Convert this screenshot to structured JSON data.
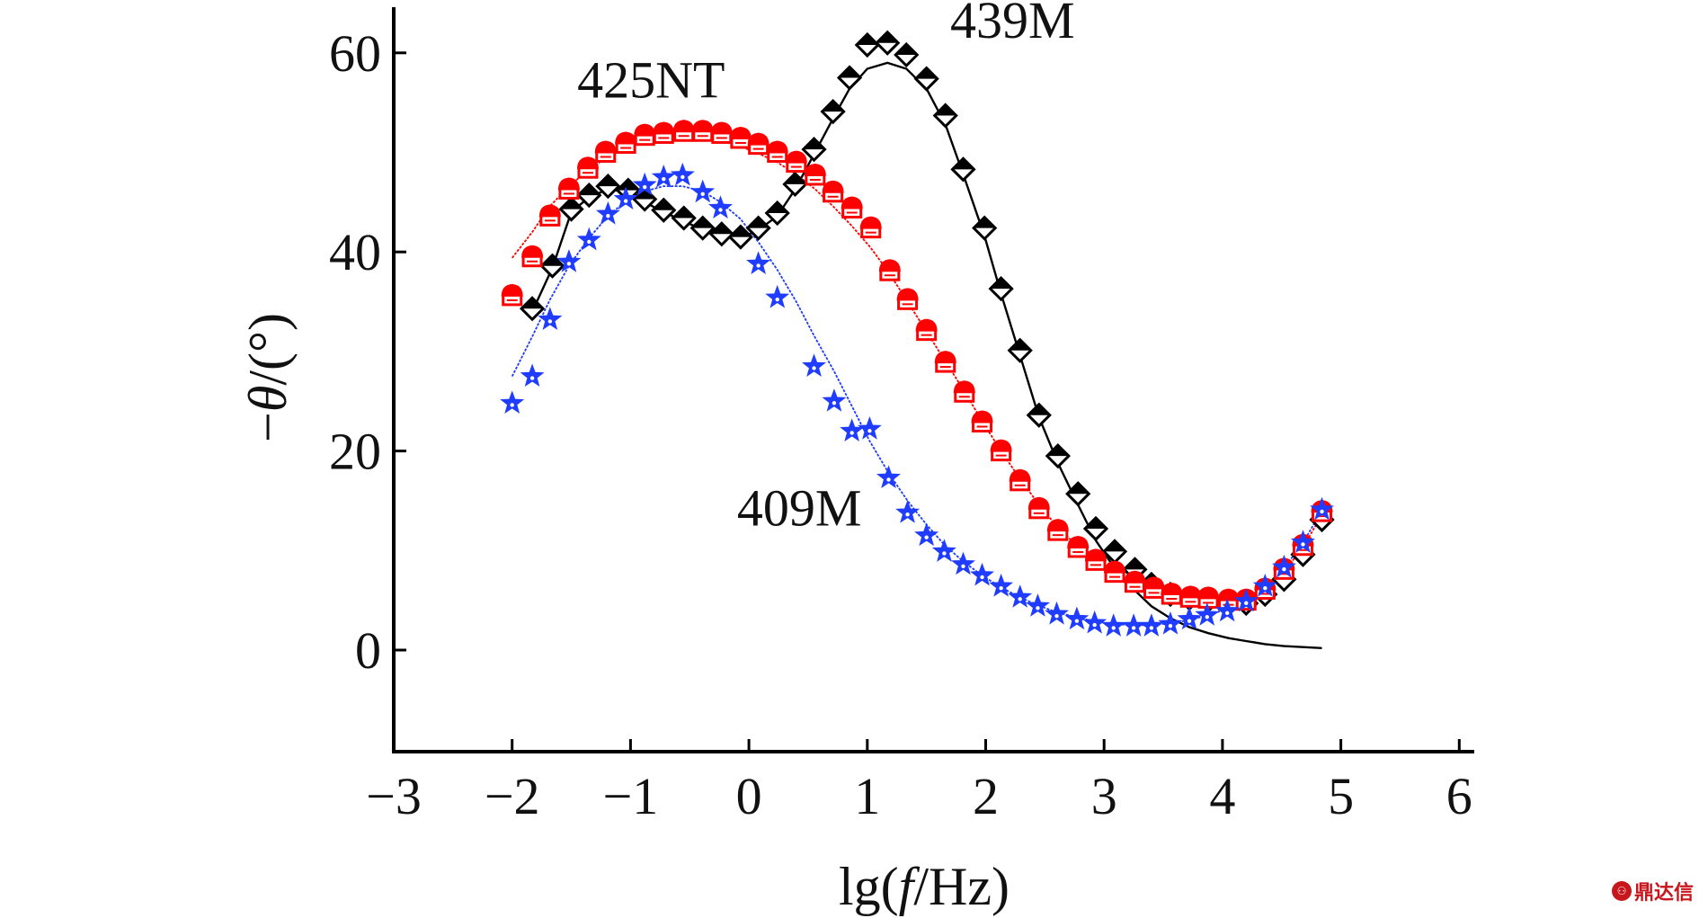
{
  "chart_data": {
    "type": "scatter",
    "title": "",
    "xlabel": "lg(f/Hz)",
    "xlabel_parts": {
      "prefix": "lg(",
      "italic": "f",
      "suffix": "/Hz)"
    },
    "ylabel": "−θ/(°)",
    "ylabel_parts": {
      "prefix": "−",
      "italic": "θ",
      "suffix": "/(°)"
    },
    "xlim": [
      -3,
      6
    ],
    "ylim": [
      -10,
      65
    ],
    "xticks": [
      -3,
      -2,
      -1,
      0,
      1,
      2,
      3,
      4,
      5,
      6
    ],
    "xtick_labels": [
      "−3",
      "−2",
      "−1",
      "0",
      "1",
      "2",
      "3",
      "4",
      "5",
      "6"
    ],
    "yticks": [
      0,
      20,
      40,
      60
    ],
    "ytick_labels": [
      "0",
      "20",
      "40",
      "60"
    ],
    "grid": false,
    "legend": "none (inline annotations)",
    "annotations": [
      {
        "text": "439M",
        "x": 1.7,
        "y": 61.5
      },
      {
        "text": "425NT",
        "x": -1.45,
        "y": 55.5
      },
      {
        "text": "409M",
        "x": -0.1,
        "y": 12.5
      }
    ],
    "series": [
      {
        "name": "439M",
        "color": "#000000",
        "marker": "diamond-half-filled",
        "x": [
          -1.83,
          -1.66,
          -1.5,
          -1.35,
          -1.19,
          -1.02,
          -0.88,
          -0.72,
          -0.55,
          -0.39,
          -0.23,
          -0.07,
          0.08,
          0.24,
          0.39,
          0.55,
          0.71,
          0.85,
          1.0,
          1.17,
          1.33,
          1.5,
          1.66,
          1.81,
          1.99,
          2.13,
          2.29,
          2.45,
          2.61,
          2.78,
          2.93,
          3.09,
          3.26,
          3.4,
          3.56,
          3.72,
          3.88,
          4.05,
          4.2,
          4.36,
          4.52,
          4.68,
          4.84
        ],
        "y": [
          34.3,
          38.6,
          44.3,
          45.7,
          46.6,
          46.2,
          45.3,
          44.2,
          43.4,
          42.4,
          41.8,
          41.5,
          42.4,
          43.9,
          46.8,
          50.3,
          54.1,
          57.5,
          60.8,
          61.0,
          59.8,
          57.4,
          53.7,
          48.3,
          42.4,
          36.3,
          30.1,
          23.6,
          19.5,
          15.7,
          12.2,
          9.9,
          8.1,
          6.6,
          5.6,
          5.2,
          5.0,
          4.9,
          4.7,
          5.6,
          7.1,
          9.6,
          13.1
        ],
        "fit": {
          "x": [
            -1.83,
            -1.66,
            -1.5,
            -1.35,
            -1.19,
            -1.02,
            -0.88,
            -0.72,
            -0.55,
            -0.39,
            -0.23,
            -0.07,
            0.08,
            0.24,
            0.39,
            0.55,
            0.71,
            0.85,
            1.0,
            1.17,
            1.33,
            1.5,
            1.66,
            1.81,
            1.99,
            2.13,
            2.29,
            2.45,
            2.61,
            2.78,
            2.93,
            3.09,
            3.26,
            3.4,
            3.56,
            3.72,
            3.88,
            4.05,
            4.2,
            4.36,
            4.52,
            4.68,
            4.84
          ],
          "y": [
            34.0,
            38.4,
            44.0,
            45.5,
            46.3,
            46.0,
            45.0,
            44.0,
            43.1,
            42.2,
            41.6,
            41.4,
            42.2,
            43.6,
            46.3,
            49.8,
            53.4,
            56.4,
            58.4,
            59.0,
            58.4,
            56.4,
            52.8,
            47.8,
            41.6,
            35.8,
            29.6,
            23.4,
            18.8,
            14.6,
            11.0,
            8.2,
            6.0,
            4.4,
            3.2,
            2.3,
            1.7,
            1.2,
            0.9,
            0.6,
            0.4,
            0.3,
            0.2
          ]
        }
      },
      {
        "name": "425NT",
        "color": "#ff0000",
        "marker": "house-half-filled",
        "x": [
          -2.0,
          -1.83,
          -1.68,
          -1.52,
          -1.36,
          -1.21,
          -1.04,
          -0.88,
          -0.72,
          -0.55,
          -0.39,
          -0.23,
          -0.07,
          0.08,
          0.24,
          0.4,
          0.56,
          0.71,
          0.87,
          1.03,
          1.19,
          1.34,
          1.5,
          1.66,
          1.82,
          1.97,
          2.13,
          2.29,
          2.45,
          2.61,
          2.78,
          2.93,
          3.09,
          3.26,
          3.42,
          3.57,
          3.73,
          3.88,
          4.05,
          4.2,
          4.36,
          4.52,
          4.68,
          4.84
        ],
        "y": [
          35.6,
          39.5,
          43.6,
          46.3,
          48.4,
          50.0,
          50.9,
          51.7,
          51.9,
          52.1,
          52.1,
          51.9,
          51.4,
          50.8,
          50.0,
          49.0,
          47.7,
          46.0,
          44.4,
          42.4,
          38.1,
          35.2,
          32.1,
          28.9,
          25.9,
          22.9,
          20.0,
          17.0,
          14.2,
          12.0,
          10.3,
          9.0,
          7.8,
          6.8,
          6.2,
          5.6,
          5.3,
          5.2,
          5.0,
          5.0,
          6.1,
          8.1,
          10.5,
          13.9
        ],
        "fit": {
          "x": [
            -2.0,
            -1.83,
            -1.68,
            -1.52,
            -1.36,
            -1.21,
            -1.04,
            -0.88,
            -0.72,
            -0.55,
            -0.39,
            -0.23,
            -0.07,
            0.08,
            0.24,
            0.4,
            0.56,
            0.71,
            0.87,
            1.03,
            1.19,
            1.34,
            1.5,
            1.66,
            1.82,
            1.97,
            2.13,
            2.29,
            2.45,
            2.61,
            2.78,
            2.93,
            3.09,
            3.26,
            3.42,
            3.57,
            3.73,
            3.88,
            4.05,
            4.2,
            4.36,
            4.52,
            4.68,
            4.84
          ],
          "y": [
            39.4,
            42.0,
            44.6,
            46.6,
            48.2,
            49.4,
            50.4,
            51.0,
            51.4,
            51.5,
            51.4,
            51.1,
            50.6,
            49.9,
            49.0,
            47.8,
            46.3,
            44.6,
            42.6,
            40.4,
            37.8,
            35.0,
            32.0,
            29.0,
            26.0,
            23.0,
            20.0,
            17.2,
            14.6,
            12.3,
            10.4,
            8.8,
            7.6,
            6.6,
            5.9,
            5.4,
            5.1,
            5.0,
            5.0,
            5.3,
            6.2,
            7.9,
            10.3,
            13.6
          ]
        }
      },
      {
        "name": "409M",
        "color": "#1f3cff",
        "marker": "star-half-filled",
        "x": [
          -2.0,
          -1.83,
          -1.68,
          -1.52,
          -1.35,
          -1.19,
          -1.04,
          -0.88,
          -0.72,
          -0.56,
          -0.39,
          -0.24,
          0.08,
          0.24,
          0.55,
          0.72,
          0.87,
          1.02,
          1.18,
          1.34,
          1.5,
          1.65,
          1.81,
          1.97,
          2.13,
          2.29,
          2.44,
          2.6,
          2.77,
          2.92,
          3.08,
          3.25,
          3.4,
          3.56,
          3.72,
          3.87,
          4.04,
          4.2,
          4.36,
          4.52,
          4.68,
          4.84
        ],
        "y": [
          24.8,
          27.5,
          33.2,
          39.0,
          41.2,
          43.8,
          45.3,
          46.7,
          47.5,
          47.7,
          46.0,
          44.4,
          38.8,
          35.4,
          28.5,
          25.0,
          22.0,
          22.2,
          17.3,
          13.8,
          11.5,
          9.9,
          8.6,
          7.5,
          6.4,
          5.3,
          4.4,
          3.6,
          3.1,
          2.7,
          2.4,
          2.4,
          2.4,
          2.6,
          3.1,
          3.5,
          3.9,
          4.9,
          6.4,
          8.3,
          10.8,
          14.1
        ],
        "fit": {
          "x": [
            -2.0,
            -1.83,
            -1.68,
            -1.52,
            -1.35,
            -1.19,
            -1.04,
            -0.88,
            -0.72,
            -0.56,
            -0.39,
            -0.24,
            -0.07,
            0.08,
            0.24,
            0.4,
            0.55,
            0.72,
            0.87,
            1.02,
            1.18,
            1.34,
            1.5,
            1.65,
            1.81,
            1.97,
            2.13,
            2.29,
            2.44,
            2.6,
            2.77,
            2.92,
            3.08,
            3.25,
            3.4,
            3.56,
            3.72,
            3.87,
            4.04,
            4.2,
            4.36,
            4.52,
            4.68,
            4.84
          ],
          "y": [
            27.5,
            31.5,
            35.2,
            38.6,
            41.4,
            43.6,
            45.1,
            46.1,
            46.6,
            46.6,
            46.1,
            45.0,
            43.3,
            41.0,
            38.2,
            35.0,
            31.6,
            28.0,
            24.5,
            21.0,
            17.8,
            15.0,
            12.6,
            10.6,
            8.9,
            7.5,
            6.3,
            5.3,
            4.5,
            3.8,
            3.3,
            2.9,
            2.6,
            2.5,
            2.5,
            2.7,
            3.0,
            3.5,
            4.1,
            5.0,
            6.3,
            8.2,
            10.8,
            14.0
          ]
        }
      }
    ]
  },
  "watermark": {
    "icon": "dingdaxin-logo-icon",
    "text": "鼎达信"
  }
}
